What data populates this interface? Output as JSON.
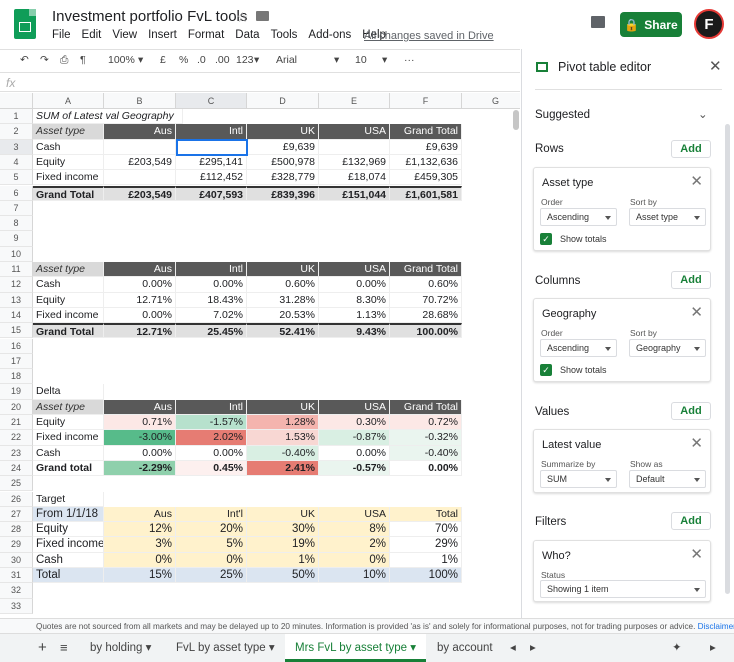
{
  "doc": {
    "title": "Investment portfolio FvL tools",
    "saved": "All changes saved in Drive",
    "share": "Share",
    "avatar": "F"
  },
  "menu": [
    "File",
    "Edit",
    "View",
    "Insert",
    "Format",
    "Data",
    "Tools",
    "Add-ons",
    "Help"
  ],
  "toolbar": {
    "zoom": "100%",
    "currency": "£",
    "percent": "%",
    "dec_less": ".0",
    "dec_more": ".00",
    "format": "123",
    "font": "Arial",
    "size": "10",
    "more": "···"
  },
  "fx": "fx",
  "columns": [
    "A",
    "B",
    "C",
    "D",
    "E",
    "F",
    "G"
  ],
  "rows": [
    "1",
    "2",
    "3",
    "4",
    "5",
    "6",
    "7",
    "8",
    "9",
    "10",
    "11",
    "12",
    "13",
    "14",
    "15",
    "16",
    "17",
    "18",
    "19",
    "20",
    "21",
    "22",
    "23",
    "24",
    "25",
    "26",
    "27",
    "28",
    "29",
    "30",
    "31",
    "32",
    "33"
  ],
  "table1": {
    "title": "SUM of Latest val Geography",
    "header": [
      "Asset type",
      "Aus",
      "Intl",
      "UK",
      "USA",
      "Grand Total"
    ],
    "rows": [
      [
        "Cash",
        "",
        "",
        "£9,639",
        "",
        "£9,639"
      ],
      [
        "Equity",
        "£203,549",
        "£295,141",
        "£500,978",
        "£132,969",
        "£1,132,636"
      ],
      [
        "Fixed income",
        "",
        "£112,452",
        "£328,779",
        "£18,074",
        "£459,305"
      ]
    ],
    "total": [
      "Grand Total",
      "£203,549",
      "£407,593",
      "£839,396",
      "£151,044",
      "£1,601,581"
    ]
  },
  "table2": {
    "header": [
      "Asset type",
      "Aus",
      "Intl",
      "UK",
      "USA",
      "Grand Total"
    ],
    "rows": [
      [
        "Cash",
        "0.00%",
        "0.00%",
        "0.60%",
        "0.00%",
        "0.60%"
      ],
      [
        "Equity",
        "12.71%",
        "18.43%",
        "31.28%",
        "8.30%",
        "70.72%"
      ],
      [
        "Fixed income",
        "0.00%",
        "7.02%",
        "20.53%",
        "1.13%",
        "28.68%"
      ]
    ],
    "total": [
      "Grand Total",
      "12.71%",
      "25.45%",
      "52.41%",
      "9.43%",
      "100.00%"
    ]
  },
  "table3": {
    "label": "Delta",
    "header": [
      "Asset type",
      "Aus",
      "Intl",
      "UK",
      "USA",
      "Grand Total"
    ],
    "rows": [
      [
        "Equity",
        "0.71%",
        "-1.57%",
        "1.28%",
        "0.30%",
        "0.72%"
      ],
      [
        "Fixed income",
        "-3.00%",
        "2.02%",
        "1.53%",
        "-0.87%",
        "-0.32%"
      ],
      [
        "Cash",
        "0.00%",
        "0.00%",
        "-0.40%",
        "0.00%",
        "-0.40%"
      ]
    ],
    "total": [
      "Grand total",
      "-2.29%",
      "0.45%",
      "2.41%",
      "-0.57%",
      "0.00%"
    ],
    "colors": [
      [
        "#ffffff",
        "#fce8e6",
        "#b7e1cd",
        "#f4b4ae",
        "#fce8e6",
        "#fce8e6"
      ],
      [
        "#ffffff",
        "#57bb8a",
        "#e67c73",
        "#f8d7d3",
        "#d9efe3",
        "#eaf5ef"
      ],
      [
        "#ffffff",
        "#ffffff",
        "#ffffff",
        "#d9efe3",
        "#ffffff",
        "#eaf5ef"
      ]
    ],
    "total_colors": [
      "#ffffff",
      "#8fd0ac",
      "#fdf0ef",
      "#e67c73",
      "#eaf5ef",
      "#ffffff"
    ]
  },
  "table4": {
    "label": "Target",
    "header": [
      "From 1/1/18",
      "Aus",
      "Int'l",
      "UK",
      "USA",
      "Total"
    ],
    "rows": [
      [
        "Equity",
        "12%",
        "20%",
        "30%",
        "8%",
        "70%"
      ],
      [
        "Fixed income",
        "3%",
        "5%",
        "19%",
        "2%",
        "29%"
      ],
      [
        "Cash",
        "0%",
        "0%",
        "1%",
        "0%",
        "1%"
      ]
    ],
    "total": [
      "Total",
      "15%",
      "25%",
      "50%",
      "10%",
      "100%"
    ]
  },
  "footer": {
    "text": "Quotes are not sourced from all markets and may be delayed up to 20 minutes. Information is provided 'as is' and solely for informational purposes, not for trading purposes or advice.",
    "link": "Disclaimer"
  },
  "tabs": [
    "by holding",
    "FvL by asset type",
    "Mrs FvL by asset type",
    "by account"
  ],
  "panel": {
    "title": "Pivot table editor",
    "suggested": "Suggested",
    "add": "Add",
    "rows_label": "Rows",
    "rows_card": {
      "title": "Asset type",
      "order_label": "Order",
      "order": "Ascending",
      "sortby_label": "Sort by",
      "sortby": "Asset type",
      "show_totals": "Show totals"
    },
    "columns_label": "Columns",
    "columns_card": {
      "title": "Geography",
      "order_label": "Order",
      "order": "Ascending",
      "sortby_label": "Sort by",
      "sortby": "Geography",
      "show_totals": "Show totals"
    },
    "values_label": "Values",
    "values_card": {
      "title": "Latest value",
      "summarize_label": "Summarize by",
      "summarize": "SUM",
      "showas_label": "Show as",
      "showas": "Default"
    },
    "filters_label": "Filters",
    "filters_card": {
      "title": "Who?",
      "status_label": "Status",
      "status": "Showing 1 item"
    }
  }
}
